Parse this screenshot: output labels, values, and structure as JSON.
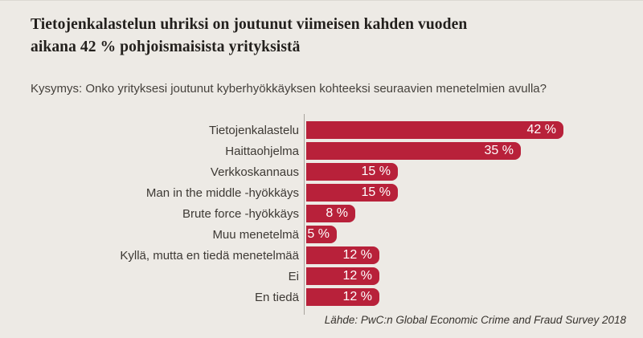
{
  "page": {
    "title_line1": "Tietojenkalastelun uhriksi on joutunut viimeisen kahden vuoden",
    "title_line2": "aikana 42 % pohjoismaisista yrityksistä",
    "question": "Kysymys: Onko yrityksesi joutunut kyberhyökkäyksen kohteeksi seuraavien menetelmien avulla?",
    "source": "Lähde: PwC:n Global Economic Crime and Fraud Survey 2018"
  },
  "chart_data": {
    "type": "bar",
    "orientation": "horizontal",
    "title": "Onko yrityksesi joutunut kyberhyökkäyksen kohteeksi seuraavien menetelmien avulla?",
    "categories": [
      "Tietojenkalastelu",
      "Haittaohjelma",
      "Verkkoskannaus",
      "Man in the middle -hyökkäys",
      "Brute force -hyökkäys",
      "Muu menetelmä",
      "Kyllä, mutta en tiedä menetelmää",
      "Ei",
      "En tiedä"
    ],
    "values": [
      42,
      35,
      15,
      15,
      8,
      5,
      12,
      12,
      12
    ],
    "value_labels": [
      "42 %",
      "35 %",
      "15 %",
      "15 %",
      "8 %",
      "5 %",
      "12 %",
      "12 %",
      "12 %"
    ],
    "unit": "%",
    "xlim": [
      0,
      44
    ],
    "grid": false,
    "legend": false,
    "value_label_position": "inside-right"
  },
  "colors": {
    "background": "#edeae5",
    "bar": "#b8213a",
    "title_text": "#23201d",
    "body_text": "#3d3934",
    "axis_line": "#a8a39d",
    "value_text": "#ffffff",
    "source_text": "#37332e"
  }
}
